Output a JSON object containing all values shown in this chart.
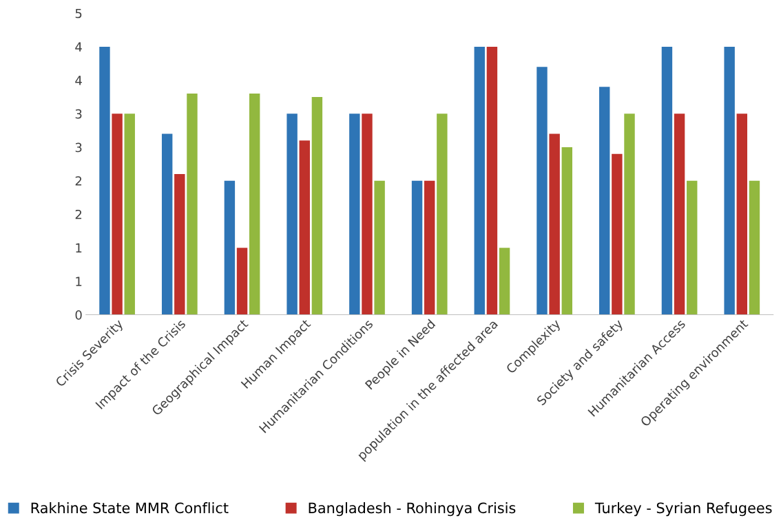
{
  "chart_data": {
    "type": "bar",
    "categories": [
      "Crisis Severity",
      "Impact of the Crisis",
      "Geographical Impact",
      "Human Impact",
      "Humanitarian Conditions",
      "People in Need",
      "population in the affected area",
      "Complexity",
      "Society and safety",
      "Humanitarian Access",
      "Operating environment"
    ],
    "series": [
      {
        "name": "Rakhine State MMR Conflict",
        "color": "#2e75b6",
        "values": [
          4.0,
          2.7,
          2.0,
          3.0,
          3.0,
          2.0,
          4.0,
          3.7,
          3.4,
          4.0,
          4.0
        ]
      },
      {
        "name": "Bangladesh - Rohingya Crisis",
        "color": "#c0312b",
        "values": [
          3.0,
          2.1,
          1.0,
          2.6,
          3.0,
          2.0,
          4.0,
          2.7,
          2.4,
          3.0,
          3.0
        ]
      },
      {
        "name": "Turkey - Syrian Refugees",
        "color": "#92b83f",
        "values": [
          3.0,
          3.3,
          3.3,
          3.25,
          2.0,
          3.0,
          1.0,
          2.5,
          3.0,
          2.0,
          2.0
        ]
      }
    ],
    "ylim": [
      0,
      4.5
    ],
    "yticks": [
      0,
      {
        "value": 0.5,
        "label": "1"
      },
      1,
      {
        "value": 1.5,
        "label": "2"
      },
      2,
      {
        "value": 2.5,
        "label": "3"
      },
      3,
      {
        "value": 3.5,
        "label": "4"
      },
      4,
      {
        "value": 4.5,
        "label": "5"
      }
    ],
    "grid": false,
    "legend": "bottom"
  }
}
